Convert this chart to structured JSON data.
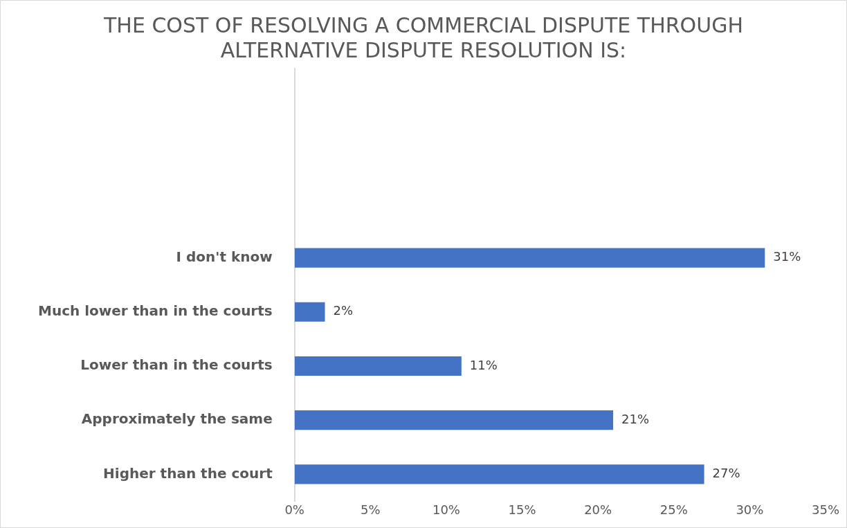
{
  "chart_data": {
    "type": "bar",
    "orientation": "horizontal",
    "title": [
      "THE COST OF RESOLVING A COMMERCIAL DISPUTE THROUGH",
      "ALTERNATIVE DISPUTE RESOLUTION IS:"
    ],
    "categories": [
      null,
      null,
      null,
      "I don't know",
      "Much lower than in the courts",
      "Lower than in the courts",
      "Approximately the same",
      "Higher than the court"
    ],
    "values": [
      null,
      null,
      null,
      31,
      2,
      11,
      21,
      27
    ],
    "value_labels": [
      null,
      null,
      null,
      "31%",
      "2%",
      "11%",
      "21%",
      "27%"
    ],
    "color": "#4472c4",
    "xlim": [
      0,
      35
    ],
    "xticks": [
      {
        "value": 0,
        "label": "0%"
      },
      {
        "value": 5,
        "label": "5%"
      },
      {
        "value": 10,
        "label": "10%"
      },
      {
        "value": 15,
        "label": "15%"
      },
      {
        "value": 20,
        "label": "20%"
      },
      {
        "value": 25,
        "label": "25%"
      },
      {
        "value": 30,
        "label": "30%"
      },
      {
        "value": 35,
        "label": "35%"
      }
    ],
    "grid": false,
    "legend": false
  }
}
